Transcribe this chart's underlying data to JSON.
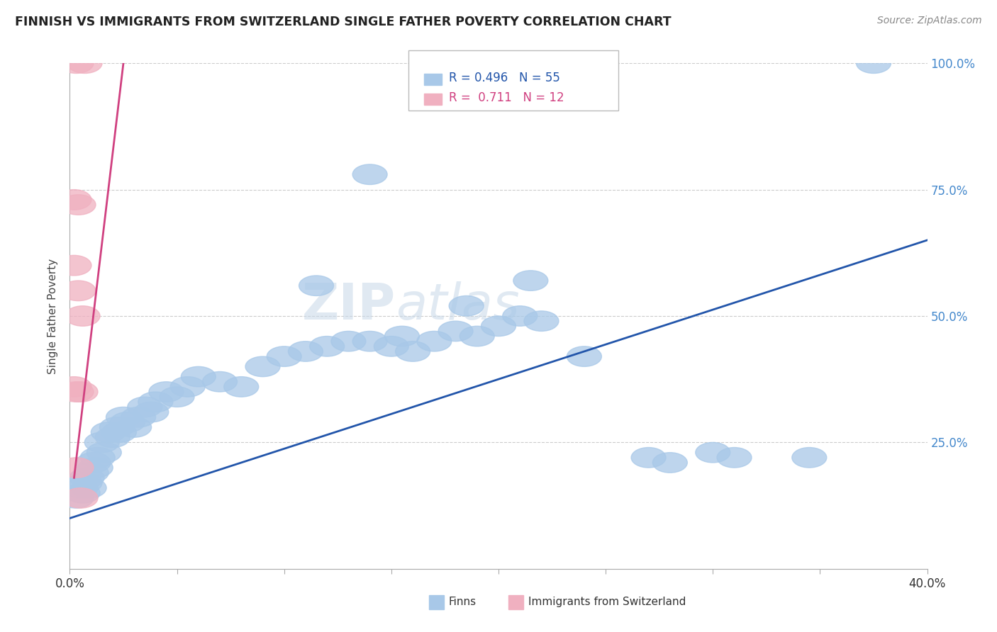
{
  "title": "FINNISH VS IMMIGRANTS FROM SWITZERLAND SINGLE FATHER POVERTY CORRELATION CHART",
  "source": "Source: ZipAtlas.com",
  "ylabel": "Single Father Poverty",
  "watermark": "ZIPatlas",
  "blue_R": 0.496,
  "blue_N": 55,
  "pink_R": 0.711,
  "pink_N": 12,
  "xmin": 0.0,
  "xmax": 40.0,
  "ymin": 0.0,
  "ymax": 100.0,
  "blue_scatter": [
    [
      0.3,
      14
    ],
    [
      0.5,
      16
    ],
    [
      0.6,
      15
    ],
    [
      0.7,
      17
    ],
    [
      0.8,
      18
    ],
    [
      0.9,
      16
    ],
    [
      1.0,
      19
    ],
    [
      1.1,
      21
    ],
    [
      1.2,
      20
    ],
    [
      1.3,
      22
    ],
    [
      1.5,
      25
    ],
    [
      1.6,
      23
    ],
    [
      1.8,
      27
    ],
    [
      2.0,
      26
    ],
    [
      2.2,
      28
    ],
    [
      2.3,
      27
    ],
    [
      2.5,
      30
    ],
    [
      2.7,
      29
    ],
    [
      3.0,
      28
    ],
    [
      3.2,
      30
    ],
    [
      3.5,
      32
    ],
    [
      3.8,
      31
    ],
    [
      4.0,
      33
    ],
    [
      4.5,
      35
    ],
    [
      5.0,
      34
    ],
    [
      5.5,
      36
    ],
    [
      6.0,
      38
    ],
    [
      7.0,
      37
    ],
    [
      8.0,
      36
    ],
    [
      9.0,
      40
    ],
    [
      10.0,
      42
    ],
    [
      11.0,
      43
    ],
    [
      12.0,
      44
    ],
    [
      13.0,
      45
    ],
    [
      14.0,
      45
    ],
    [
      15.0,
      44
    ],
    [
      15.5,
      46
    ],
    [
      16.0,
      43
    ],
    [
      17.0,
      45
    ],
    [
      18.0,
      47
    ],
    [
      19.0,
      46
    ],
    [
      20.0,
      48
    ],
    [
      21.0,
      50
    ],
    [
      22.0,
      49
    ],
    [
      14.0,
      78
    ],
    [
      11.5,
      56
    ],
    [
      18.5,
      52
    ],
    [
      21.5,
      57
    ],
    [
      24.0,
      42
    ],
    [
      27.0,
      22
    ],
    [
      28.0,
      21
    ],
    [
      30.0,
      23
    ],
    [
      31.0,
      22
    ],
    [
      34.5,
      22
    ],
    [
      37.5,
      100
    ]
  ],
  "pink_scatter": [
    [
      0.3,
      100
    ],
    [
      0.7,
      100
    ],
    [
      0.3,
      35
    ],
    [
      0.5,
      35
    ],
    [
      0.2,
      60
    ],
    [
      0.4,
      55
    ],
    [
      0.6,
      50
    ],
    [
      0.2,
      73
    ],
    [
      0.4,
      72
    ],
    [
      0.2,
      36
    ],
    [
      0.3,
      20
    ],
    [
      0.5,
      14
    ]
  ],
  "blue_line_x": [
    0.0,
    40.0
  ],
  "blue_line_y": [
    10.0,
    65.0
  ],
  "pink_line_x": [
    0.2,
    2.5
  ],
  "pink_line_y": [
    18.0,
    100.0
  ],
  "bg_color": "#ffffff",
  "blue_color": "#a8c8e8",
  "pink_color": "#f0b0c0",
  "blue_line_color": "#2255aa",
  "pink_line_color": "#d04080",
  "grid_color": "#cccccc",
  "title_color": "#222222",
  "right_axis_color": "#4488cc",
  "legend_blue_text_color": "#2255aa",
  "legend_pink_text_color": "#d04080",
  "xtick_positions": [
    0,
    5,
    10,
    15,
    20,
    25,
    30,
    35,
    40
  ]
}
